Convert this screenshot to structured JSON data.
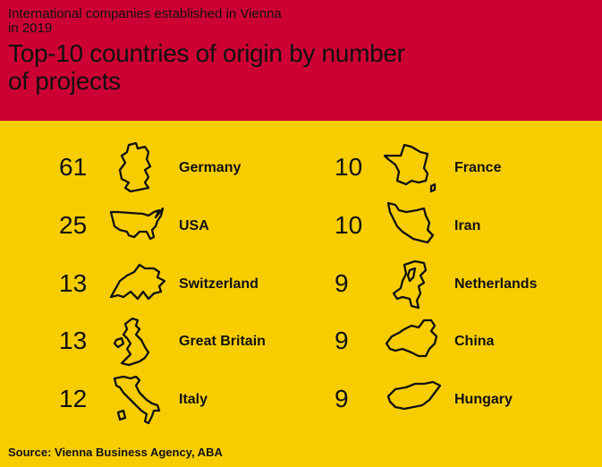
{
  "header": {
    "subtitle": "International companies established in Vienna in 2019",
    "title": "Top-10 countries of origin by number of projects"
  },
  "source": "Source: Vienna Business Agency, ABA",
  "colors": {
    "header_bg": "#cc0033",
    "body_bg": "#f7cd00",
    "text": "#111111"
  },
  "chart_data": {
    "type": "table",
    "title": "Top-10 countries of origin by number of projects",
    "subtitle": "International companies established in Vienna in 2019",
    "rows": [
      {
        "value": "61",
        "country": "Germany",
        "icon": "germany-outline-icon"
      },
      {
        "value": "25",
        "country": "USA",
        "icon": "usa-outline-icon"
      },
      {
        "value": "13",
        "country": "Switzerland",
        "icon": "switzerland-outline-icon"
      },
      {
        "value": "13",
        "country": "Great Britain",
        "icon": "great-britain-outline-icon"
      },
      {
        "value": "12",
        "country": "Italy",
        "icon": "italy-outline-icon"
      },
      {
        "value": "10",
        "country": "France",
        "icon": "france-outline-icon"
      },
      {
        "value": "10",
        "country": "Iran",
        "icon": "iran-outline-icon"
      },
      {
        "value": "9",
        "country": "Netherlands",
        "icon": "netherlands-outline-icon"
      },
      {
        "value": "9",
        "country": "China",
        "icon": "china-outline-icon"
      },
      {
        "value": "9",
        "country": "Hungary",
        "icon": "hungary-outline-icon"
      }
    ]
  }
}
